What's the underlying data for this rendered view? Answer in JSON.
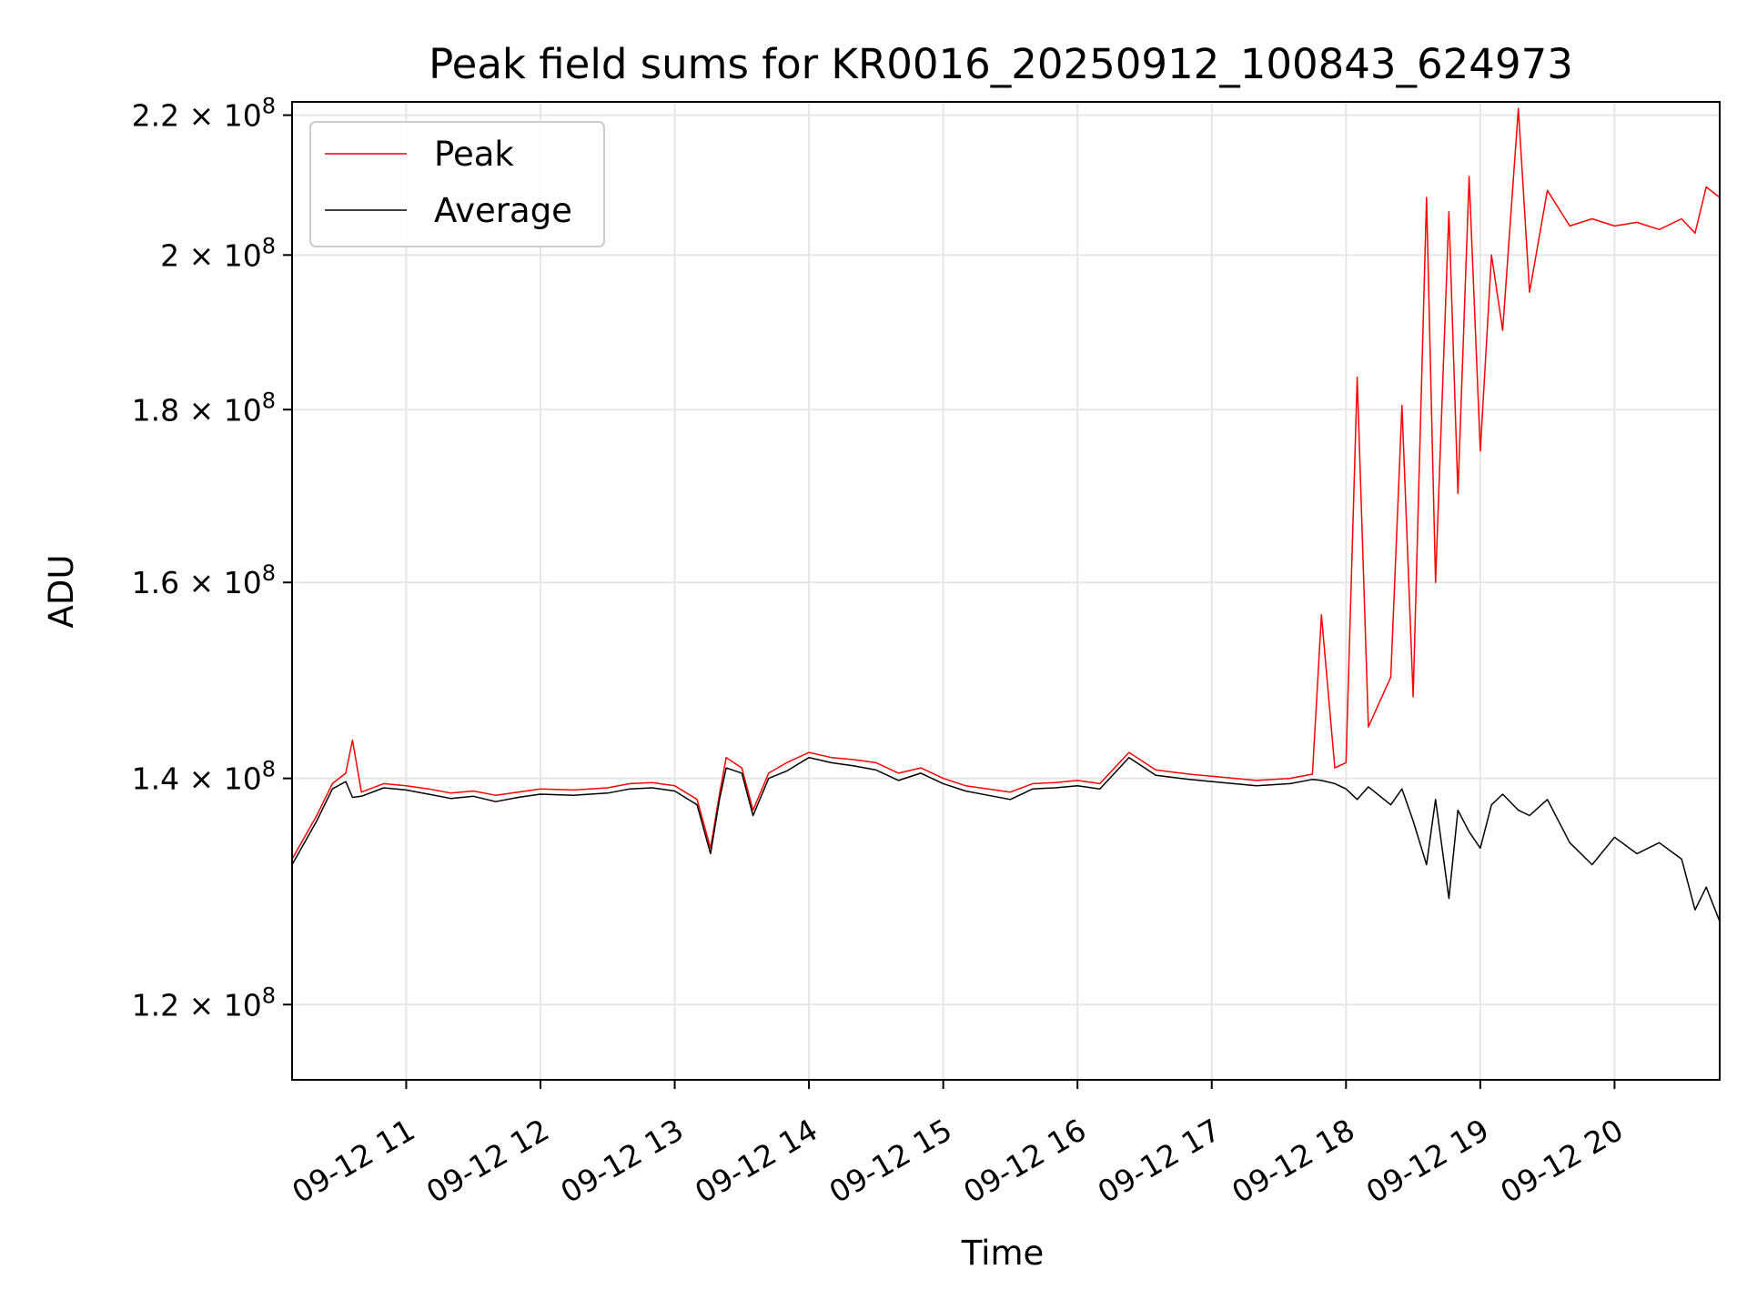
{
  "chart_data": {
    "type": "line",
    "title": "Peak field sums for KR0016_20250912_100843_624973",
    "xlabel": "Time",
    "ylabel": "ADU",
    "y_scale": "log",
    "ylim": [
      114000000,
      222000000
    ],
    "xlim": [
      "2025-09-12 10:09",
      "2025-09-12 20:47"
    ],
    "y_ticks": [
      {
        "value": 120000000,
        "mantissa": "1.2"
      },
      {
        "value": 140000000,
        "mantissa": "1.4"
      },
      {
        "value": 160000000,
        "mantissa": "1.6"
      },
      {
        "value": 180000000,
        "mantissa": "1.8"
      },
      {
        "value": 200000000,
        "mantissa": "2"
      },
      {
        "value": 220000000,
        "mantissa": "2.2"
      }
    ],
    "y_tick_suffix": "× 10",
    "y_tick_exponent": "8",
    "x_ticks": [
      {
        "time": "2025-09-12 11:00",
        "label": "09-12 11"
      },
      {
        "time": "2025-09-12 12:00",
        "label": "09-12 12"
      },
      {
        "time": "2025-09-12 13:00",
        "label": "09-12 13"
      },
      {
        "time": "2025-09-12 14:00",
        "label": "09-12 14"
      },
      {
        "time": "2025-09-12 15:00",
        "label": "09-12 15"
      },
      {
        "time": "2025-09-12 16:00",
        "label": "09-12 16"
      },
      {
        "time": "2025-09-12 17:00",
        "label": "09-12 17"
      },
      {
        "time": "2025-09-12 18:00",
        "label": "09-12 18"
      },
      {
        "time": "2025-09-12 19:00",
        "label": "09-12 19"
      },
      {
        "time": "2025-09-12 20:00",
        "label": "09-12 20"
      }
    ],
    "grid": true,
    "legend_position": "top-left",
    "series": [
      {
        "name": "Peak",
        "color": "#ff0000",
        "points": [
          [
            "2025-09-12 10:09",
            132500000
          ],
          [
            "2025-09-12 10:20",
            136500000
          ],
          [
            "2025-09-12 10:27",
            139500000
          ],
          [
            "2025-09-12 10:33",
            140500000
          ],
          [
            "2025-09-12 10:36",
            143700000
          ],
          [
            "2025-09-12 10:40",
            138700000
          ],
          [
            "2025-09-12 10:50",
            139500000
          ],
          [
            "2025-09-12 11:00",
            139300000
          ],
          [
            "2025-09-12 11:10",
            139000000
          ],
          [
            "2025-09-12 11:20",
            138600000
          ],
          [
            "2025-09-12 11:30",
            138800000
          ],
          [
            "2025-09-12 11:40",
            138400000
          ],
          [
            "2025-09-12 11:50",
            138700000
          ],
          [
            "2025-09-12 12:00",
            139000000
          ],
          [
            "2025-09-12 12:15",
            138900000
          ],
          [
            "2025-09-12 12:30",
            139100000
          ],
          [
            "2025-09-12 12:40",
            139500000
          ],
          [
            "2025-09-12 12:50",
            139600000
          ],
          [
            "2025-09-12 13:00",
            139300000
          ],
          [
            "2025-09-12 13:10",
            138000000
          ],
          [
            "2025-09-12 13:16",
            133500000
          ],
          [
            "2025-09-12 13:20",
            138500000
          ],
          [
            "2025-09-12 13:23",
            142000000
          ],
          [
            "2025-09-12 13:30",
            141000000
          ],
          [
            "2025-09-12 13:35",
            137000000
          ],
          [
            "2025-09-12 13:42",
            140500000
          ],
          [
            "2025-09-12 13:50",
            141500000
          ],
          [
            "2025-09-12 14:00",
            142500000
          ],
          [
            "2025-09-12 14:10",
            142000000
          ],
          [
            "2025-09-12 14:20",
            141800000
          ],
          [
            "2025-09-12 14:30",
            141500000
          ],
          [
            "2025-09-12 14:40",
            140500000
          ],
          [
            "2025-09-12 14:50",
            141000000
          ],
          [
            "2025-09-12 15:00",
            140000000
          ],
          [
            "2025-09-12 15:10",
            139300000
          ],
          [
            "2025-09-12 15:20",
            139000000
          ],
          [
            "2025-09-12 15:30",
            138700000
          ],
          [
            "2025-09-12 15:40",
            139500000
          ],
          [
            "2025-09-12 15:50",
            139600000
          ],
          [
            "2025-09-12 16:00",
            139800000
          ],
          [
            "2025-09-12 16:10",
            139500000
          ],
          [
            "2025-09-12 16:23",
            142500000
          ],
          [
            "2025-09-12 16:35",
            140800000
          ],
          [
            "2025-09-12 16:50",
            140400000
          ],
          [
            "2025-09-12 17:00",
            140200000
          ],
          [
            "2025-09-12 17:20",
            139800000
          ],
          [
            "2025-09-12 17:35",
            140000000
          ],
          [
            "2025-09-12 17:45",
            140400000
          ],
          [
            "2025-09-12 17:49",
            156500000
          ],
          [
            "2025-09-12 17:55",
            141000000
          ],
          [
            "2025-09-12 18:00",
            141500000
          ],
          [
            "2025-09-12 18:05",
            184000000
          ],
          [
            "2025-09-12 18:10",
            145000000
          ],
          [
            "2025-09-12 18:20",
            150000000
          ],
          [
            "2025-09-12 18:25",
            180500000
          ],
          [
            "2025-09-12 18:30",
            148000000
          ],
          [
            "2025-09-12 18:36",
            208000000
          ],
          [
            "2025-09-12 18:40",
            160000000
          ],
          [
            "2025-09-12 18:46",
            206000000
          ],
          [
            "2025-09-12 18:50",
            170000000
          ],
          [
            "2025-09-12 18:55",
            211000000
          ],
          [
            "2025-09-12 19:00",
            175000000
          ],
          [
            "2025-09-12 19:05",
            200000000
          ],
          [
            "2025-09-12 19:10",
            190000000
          ],
          [
            "2025-09-12 19:17",
            221000000
          ],
          [
            "2025-09-12 19:22",
            195000000
          ],
          [
            "2025-09-12 19:30",
            209000000
          ],
          [
            "2025-09-12 19:40",
            204000000
          ],
          [
            "2025-09-12 19:50",
            205000000
          ],
          [
            "2025-09-12 20:00",
            204000000
          ],
          [
            "2025-09-12 20:10",
            204500000
          ],
          [
            "2025-09-12 20:20",
            203500000
          ],
          [
            "2025-09-12 20:30",
            205000000
          ],
          [
            "2025-09-12 20:36",
            203000000
          ],
          [
            "2025-09-12 20:41",
            209500000
          ],
          [
            "2025-09-12 20:47",
            208000000
          ]
        ]
      },
      {
        "name": "Average",
        "color": "#000000",
        "points": [
          [
            "2025-09-12 10:09",
            132000000
          ],
          [
            "2025-09-12 10:20",
            136000000
          ],
          [
            "2025-09-12 10:27",
            139000000
          ],
          [
            "2025-09-12 10:33",
            139700000
          ],
          [
            "2025-09-12 10:36",
            138200000
          ],
          [
            "2025-09-12 10:40",
            138300000
          ],
          [
            "2025-09-12 10:50",
            139100000
          ],
          [
            "2025-09-12 11:00",
            138900000
          ],
          [
            "2025-09-12 11:10",
            138500000
          ],
          [
            "2025-09-12 11:20",
            138100000
          ],
          [
            "2025-09-12 11:30",
            138300000
          ],
          [
            "2025-09-12 11:40",
            137800000
          ],
          [
            "2025-09-12 11:50",
            138200000
          ],
          [
            "2025-09-12 12:00",
            138500000
          ],
          [
            "2025-09-12 12:15",
            138400000
          ],
          [
            "2025-09-12 12:30",
            138600000
          ],
          [
            "2025-09-12 12:40",
            139000000
          ],
          [
            "2025-09-12 12:50",
            139100000
          ],
          [
            "2025-09-12 13:00",
            138800000
          ],
          [
            "2025-09-12 13:10",
            137500000
          ],
          [
            "2025-09-12 13:16",
            133000000
          ],
          [
            "2025-09-12 13:20",
            138000000
          ],
          [
            "2025-09-12 13:23",
            141000000
          ],
          [
            "2025-09-12 13:30",
            140500000
          ],
          [
            "2025-09-12 13:35",
            136500000
          ],
          [
            "2025-09-12 13:42",
            140000000
          ],
          [
            "2025-09-12 13:50",
            140700000
          ],
          [
            "2025-09-12 14:00",
            142000000
          ],
          [
            "2025-09-12 14:10",
            141500000
          ],
          [
            "2025-09-12 14:20",
            141200000
          ],
          [
            "2025-09-12 14:30",
            140800000
          ],
          [
            "2025-09-12 14:40",
            139800000
          ],
          [
            "2025-09-12 14:50",
            140500000
          ],
          [
            "2025-09-12 15:00",
            139500000
          ],
          [
            "2025-09-12 15:10",
            138800000
          ],
          [
            "2025-09-12 15:20",
            138400000
          ],
          [
            "2025-09-12 15:30",
            138000000
          ],
          [
            "2025-09-12 15:40",
            139000000
          ],
          [
            "2025-09-12 15:50",
            139100000
          ],
          [
            "2025-09-12 16:00",
            139300000
          ],
          [
            "2025-09-12 16:10",
            139000000
          ],
          [
            "2025-09-12 16:23",
            142000000
          ],
          [
            "2025-09-12 16:35",
            140300000
          ],
          [
            "2025-09-12 16:50",
            139900000
          ],
          [
            "2025-09-12 17:00",
            139700000
          ],
          [
            "2025-09-12 17:20",
            139300000
          ],
          [
            "2025-09-12 17:35",
            139500000
          ],
          [
            "2025-09-12 17:45",
            139900000
          ],
          [
            "2025-09-12 17:49",
            139800000
          ],
          [
            "2025-09-12 17:55",
            139500000
          ],
          [
            "2025-09-12 18:00",
            139000000
          ],
          [
            "2025-09-12 18:05",
            138000000
          ],
          [
            "2025-09-12 18:10",
            139200000
          ],
          [
            "2025-09-12 18:20",
            137500000
          ],
          [
            "2025-09-12 18:25",
            139000000
          ],
          [
            "2025-09-12 18:30",
            136000000
          ],
          [
            "2025-09-12 18:36",
            132000000
          ],
          [
            "2025-09-12 18:40",
            138000000
          ],
          [
            "2025-09-12 18:46",
            129000000
          ],
          [
            "2025-09-12 18:50",
            137000000
          ],
          [
            "2025-09-12 18:55",
            135000000
          ],
          [
            "2025-09-12 19:00",
            133500000
          ],
          [
            "2025-09-12 19:05",
            137500000
          ],
          [
            "2025-09-12 19:10",
            138500000
          ],
          [
            "2025-09-12 19:17",
            137000000
          ],
          [
            "2025-09-12 19:22",
            136500000
          ],
          [
            "2025-09-12 19:30",
            138000000
          ],
          [
            "2025-09-12 19:40",
            134000000
          ],
          [
            "2025-09-12 19:50",
            132000000
          ],
          [
            "2025-09-12 20:00",
            134500000
          ],
          [
            "2025-09-12 20:10",
            133000000
          ],
          [
            "2025-09-12 20:20",
            134000000
          ],
          [
            "2025-09-12 20:30",
            132500000
          ],
          [
            "2025-09-12 20:36",
            128000000
          ],
          [
            "2025-09-12 20:41",
            130000000
          ],
          [
            "2025-09-12 20:47",
            127000000
          ]
        ]
      }
    ]
  }
}
